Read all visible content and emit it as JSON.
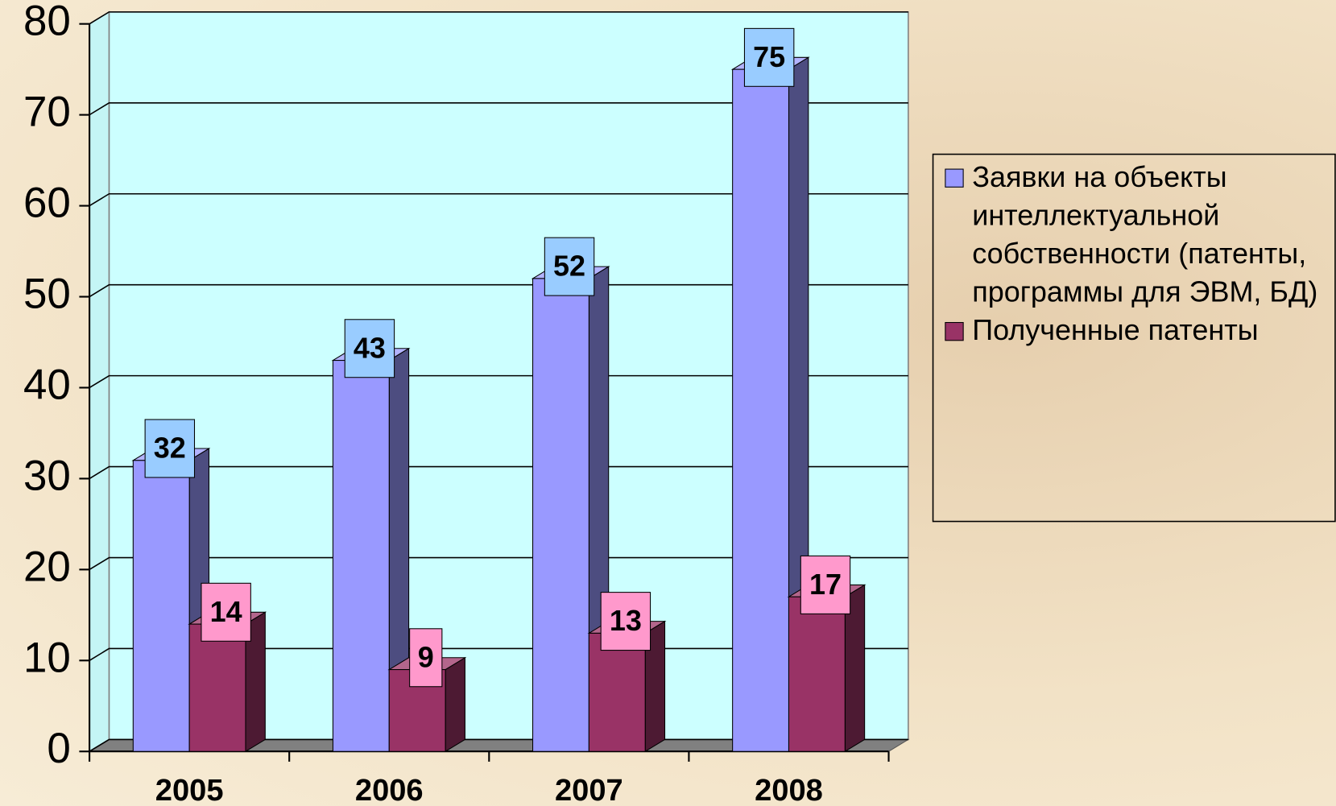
{
  "chart_data": {
    "type": "bar3d",
    "categories": [
      "2005",
      "2006",
      "2007",
      "2008"
    ],
    "series": [
      {
        "name": "Заявки на объекты интеллектуальной собственности (патенты, программы для ЭВМ, БД)",
        "color": "#9999ff",
        "values": [
          32,
          43,
          52,
          75
        ]
      },
      {
        "name": "Полученные патенты",
        "color": "#993366",
        "values": [
          14,
          9,
          13,
          17
        ]
      }
    ],
    "ylim": [
      0,
      80
    ],
    "yticks": [
      0,
      10,
      20,
      30,
      40,
      50,
      60,
      70,
      80
    ],
    "grid": true,
    "legend": "right"
  }
}
